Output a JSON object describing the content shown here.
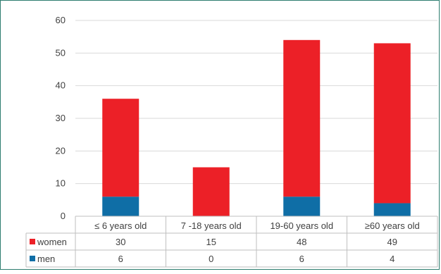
{
  "chart_data": {
    "type": "bar",
    "stacked": true,
    "categories": [
      "≤ 6 years old",
      "7 -18 years old",
      "19-60 years old",
      "≥60 years old"
    ],
    "series": [
      {
        "name": "men",
        "values": [
          6,
          0,
          6,
          4
        ],
        "color": "#0f6ea6"
      },
      {
        "name": "women",
        "values": [
          30,
          15,
          48,
          49
        ],
        "color": "#ec2027"
      }
    ],
    "table_rows": [
      {
        "name": "women",
        "values": [
          "30",
          "15",
          "48",
          "49"
        ],
        "color": "#ec2027"
      },
      {
        "name": "men",
        "values": [
          "6",
          "0",
          "6",
          "4"
        ],
        "color": "#0f6ea6"
      }
    ],
    "ylim": [
      0,
      60
    ],
    "yticks": [
      "0",
      "10",
      "20",
      "30",
      "40",
      "50",
      "60"
    ],
    "grid": true,
    "legend": "data-table"
  }
}
